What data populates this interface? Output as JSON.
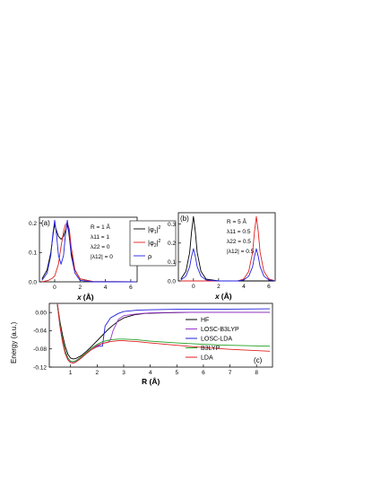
{
  "chart_data": [
    {
      "panel_label": "(a)",
      "type": "line",
      "xlabel_var": "x",
      "xlabel_unit": "(Å)",
      "xlim": [
        -1.2,
        6.5
      ],
      "ylim": [
        0,
        0.22
      ],
      "xticks": [
        0,
        2,
        4,
        6
      ],
      "yticks": [
        0.0,
        0.1,
        0.2
      ],
      "ytick_labels": [
        "0.0",
        "0.1",
        "0.2"
      ],
      "params": [
        "R = 1 Å",
        "λ11 = 1",
        "λ22 = 0",
        "|λ12| = 0"
      ],
      "series": [
        {
          "name": "|φ1|²",
          "color": "#000000",
          "x": [
            -1.0,
            -0.6,
            -0.3,
            -0.1,
            0.0,
            0.1,
            0.3,
            0.5,
            0.7,
            0.9,
            1.0,
            1.1,
            1.3,
            1.6,
            2.0,
            3.0,
            6.4
          ],
          "y": [
            0.01,
            0.04,
            0.1,
            0.17,
            0.195,
            0.18,
            0.155,
            0.145,
            0.155,
            0.18,
            0.195,
            0.17,
            0.1,
            0.04,
            0.01,
            0.001,
            0.0
          ]
        },
        {
          "name": "|φ2|²",
          "color": "#e02020",
          "x": [
            -1.0,
            -0.5,
            -0.2,
            0.0,
            0.3,
            0.5,
            0.7,
            0.85,
            1.0,
            1.15,
            1.3,
            1.6,
            2.0,
            3.0,
            6.4
          ],
          "y": [
            0.0,
            0.005,
            0.012,
            0.02,
            0.06,
            0.12,
            0.17,
            0.195,
            0.2,
            0.18,
            0.12,
            0.04,
            0.01,
            0.001,
            0.0
          ]
        },
        {
          "name": "ρ",
          "color": "#2020e0",
          "x": [
            -1.0,
            -0.6,
            -0.3,
            -0.15,
            0.0,
            0.15,
            0.3,
            0.5,
            0.7,
            0.85,
            1.0,
            1.15,
            1.3,
            1.6,
            2.0,
            3.0,
            6.4
          ],
          "y": [
            0.005,
            0.03,
            0.09,
            0.16,
            0.21,
            0.16,
            0.09,
            0.06,
            0.09,
            0.16,
            0.21,
            0.16,
            0.09,
            0.03,
            0.005,
            0.0,
            0.0
          ]
        }
      ]
    },
    {
      "panel_label": "(b)",
      "type": "line",
      "xlabel_var": "x",
      "xlabel_unit": "(Å)",
      "xlim": [
        -1.2,
        6.5
      ],
      "ylim": [
        0,
        0.36
      ],
      "xticks": [
        0,
        2,
        4,
        6
      ],
      "yticks": [
        0.0,
        0.1,
        0.2,
        0.3
      ],
      "ytick_labels": [
        "0.0",
        "0.1",
        "0.2",
        "0.3"
      ],
      "params": [
        "R = 5 Å",
        "λ11 = 0.5",
        "λ22 = 0.5",
        "|λ12| = 0.5"
      ],
      "series": [
        {
          "name": "|φ1|²",
          "color": "#000000",
          "x": [
            -1.0,
            -0.6,
            -0.3,
            -0.15,
            0.0,
            0.15,
            0.3,
            0.6,
            1.0,
            2.0,
            6.4
          ],
          "y": [
            0.01,
            0.05,
            0.15,
            0.26,
            0.34,
            0.26,
            0.15,
            0.05,
            0.01,
            0.0,
            0.0
          ]
        },
        {
          "name": "|φ2|²",
          "color": "#e02020",
          "x": [
            -1.0,
            3.5,
            4.0,
            4.4,
            4.7,
            4.85,
            5.0,
            5.15,
            5.3,
            5.6,
            6.0,
            6.4
          ],
          "y": [
            0.0,
            0.0,
            0.01,
            0.05,
            0.15,
            0.26,
            0.34,
            0.26,
            0.15,
            0.05,
            0.01,
            0.003
          ]
        },
        {
          "name": "ρ",
          "color": "#2020e0",
          "x": [
            -1.0,
            -0.6,
            -0.3,
            -0.15,
            0.0,
            0.15,
            0.3,
            0.6,
            1.0,
            2.0,
            3.5,
            4.0,
            4.4,
            4.7,
            4.85,
            5.0,
            5.15,
            5.3,
            5.6,
            6.0,
            6.4
          ],
          "y": [
            0.005,
            0.025,
            0.075,
            0.13,
            0.17,
            0.13,
            0.075,
            0.025,
            0.005,
            0.0,
            0.0,
            0.005,
            0.025,
            0.075,
            0.13,
            0.17,
            0.13,
            0.075,
            0.025,
            0.005,
            0.002
          ]
        }
      ]
    },
    {
      "panel_label": "(c)",
      "type": "line",
      "xlabel": "R (Å)",
      "ylabel": "Energy (a.u.)",
      "xlim": [
        0.2,
        8.6
      ],
      "ylim": [
        -0.12,
        0.02
      ],
      "xticks": [
        1,
        2,
        3,
        4,
        5,
        6,
        7,
        8
      ],
      "yticks": [
        0.0,
        -0.04,
        -0.08,
        -0.12
      ],
      "ytick_labels": [
        "0.00",
        "-0.04",
        "-0.08",
        "-0.12"
      ],
      "series": [
        {
          "name": "HF",
          "color": "#000000",
          "x": [
            0.5,
            0.6,
            0.7,
            0.8,
            0.9,
            1.0,
            1.1,
            1.2,
            1.4,
            1.6,
            1.8,
            2.0,
            2.2,
            2.4,
            2.6,
            2.8,
            3.0,
            3.4,
            3.8,
            4.5,
            5.5,
            7.0,
            8.5
          ],
          "y": [
            0.02,
            -0.02,
            -0.05,
            -0.075,
            -0.092,
            -0.1,
            -0.102,
            -0.101,
            -0.095,
            -0.085,
            -0.074,
            -0.062,
            -0.05,
            -0.038,
            -0.028,
            -0.019,
            -0.012,
            -0.005,
            -0.002,
            -0.001,
            0.0,
            0.0,
            0.0
          ]
        },
        {
          "name": "LOSC-B3LYP",
          "color": "#9933cc",
          "x": [
            0.5,
            0.6,
            0.7,
            0.8,
            0.9,
            1.0,
            1.1,
            1.2,
            1.4,
            1.6,
            1.8,
            2.0,
            2.2,
            2.4,
            2.5,
            2.6,
            2.8,
            3.0,
            3.5,
            4.0,
            5.0,
            6.0,
            8.5
          ],
          "y": [
            0.02,
            -0.025,
            -0.06,
            -0.085,
            -0.1,
            -0.107,
            -0.108,
            -0.106,
            -0.098,
            -0.088,
            -0.078,
            -0.072,
            -0.068,
            -0.066,
            -0.06,
            -0.04,
            -0.015,
            -0.007,
            -0.003,
            -0.001,
            0.0,
            0.0,
            0.0
          ]
        },
        {
          "name": "LOSC-LDA",
          "color": "#1f1fdd",
          "x": [
            0.5,
            0.6,
            0.7,
            0.8,
            0.9,
            1.0,
            1.1,
            1.2,
            1.4,
            1.6,
            1.8,
            2.0,
            2.1,
            2.2,
            2.3,
            2.5,
            2.8,
            3.0,
            3.5,
            4.0,
            5.0,
            6.0,
            8.5
          ],
          "y": [
            0.02,
            -0.03,
            -0.065,
            -0.09,
            -0.104,
            -0.11,
            -0.111,
            -0.109,
            -0.1,
            -0.09,
            -0.081,
            -0.075,
            -0.074,
            -0.074,
            -0.03,
            -0.012,
            -0.002,
            0.002,
            0.005,
            0.006,
            0.007,
            0.007,
            0.008
          ]
        },
        {
          "name": "B3LYP",
          "color": "#22a022",
          "x": [
            0.5,
            0.6,
            0.7,
            0.8,
            0.9,
            1.0,
            1.1,
            1.2,
            1.4,
            1.6,
            1.8,
            2.0,
            2.2,
            2.5,
            2.8,
            3.0,
            3.2,
            3.5,
            4.0,
            5.0,
            6.0,
            7.0,
            8.5
          ],
          "y": [
            0.02,
            -0.025,
            -0.06,
            -0.085,
            -0.1,
            -0.107,
            -0.108,
            -0.106,
            -0.098,
            -0.088,
            -0.078,
            -0.07,
            -0.064,
            -0.06,
            -0.0585,
            -0.0585,
            -0.059,
            -0.06,
            -0.063,
            -0.067,
            -0.07,
            -0.072,
            -0.074
          ]
        },
        {
          "name": "LDA",
          "color": "#e02020",
          "x": [
            0.5,
            0.6,
            0.7,
            0.8,
            0.9,
            1.0,
            1.1,
            1.2,
            1.4,
            1.6,
            1.8,
            2.0,
            2.2,
            2.5,
            2.8,
            3.0,
            3.2,
            3.5,
            4.0,
            5.0,
            6.0,
            7.0,
            8.5
          ],
          "y": [
            0.02,
            -0.03,
            -0.065,
            -0.09,
            -0.104,
            -0.11,
            -0.111,
            -0.109,
            -0.1,
            -0.09,
            -0.081,
            -0.074,
            -0.068,
            -0.064,
            -0.062,
            -0.062,
            -0.063,
            -0.064,
            -0.067,
            -0.072,
            -0.077,
            -0.081,
            -0.085
          ]
        }
      ]
    }
  ]
}
